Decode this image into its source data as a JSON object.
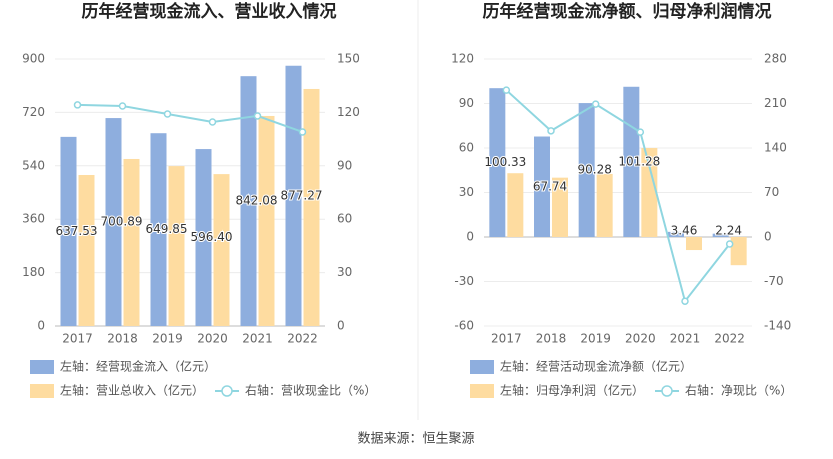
{
  "chart_data": [
    {
      "type": "bar",
      "title": "历年经营现金流入、营业收入情况",
      "categories": [
        "2017",
        "2018",
        "2019",
        "2020",
        "2021",
        "2022"
      ],
      "ylim": [
        0,
        900
      ],
      "yticks": [
        0,
        180,
        360,
        540,
        720,
        900
      ],
      "y2lim": [
        0,
        150
      ],
      "y2ticks": [
        0,
        30,
        60,
        90,
        120,
        150
      ],
      "grid": true,
      "series": [
        {
          "name": "左轴：经营现金流入（亿元）",
          "type": "bar",
          "color": "#8eaede",
          "values": [
            637.53,
            700.89,
            649.85,
            596.4,
            842.08,
            877.27
          ],
          "value_labels": [
            "637.53",
            "700.89",
            "649.85",
            "596.40",
            "842.08",
            "877.27"
          ]
        },
        {
          "name": "左轴：营业总收入（亿元）",
          "type": "bar",
          "color": "#fedca0",
          "values": [
            509,
            563,
            539,
            512,
            708,
            799
          ]
        },
        {
          "name": "右轴：营收现金比（%）",
          "type": "line",
          "axis": "y2",
          "color": "#8fd6e0",
          "values": [
            124.2,
            123.6,
            119.1,
            114.6,
            118,
            109
          ]
        }
      ]
    },
    {
      "type": "bar",
      "title": "历年经营现金流净额、归母净利润情况",
      "categories": [
        "2017",
        "2018",
        "2019",
        "2020",
        "2021",
        "2022"
      ],
      "ylim": [
        -60,
        120
      ],
      "yticks": [
        -60,
        -30,
        0,
        30,
        60,
        90,
        120
      ],
      "y2lim": [
        -140,
        280
      ],
      "y2ticks": [
        -140,
        -70,
        0,
        70,
        140,
        210,
        280
      ],
      "grid": true,
      "series": [
        {
          "name": "左轴：经营活动现金流净额（亿元）",
          "type": "bar",
          "color": "#8eaede",
          "values": [
            100.33,
            67.74,
            90.28,
            101.28,
            3.46,
            2.24
          ],
          "value_labels": [
            "100.33",
            "67.74",
            "90.28",
            "101.28",
            "3.46",
            "2.24"
          ]
        },
        {
          "name": "左轴：归母净利润（亿元）",
          "type": "bar",
          "color": "#fedca0",
          "values": [
            43,
            40,
            42.5,
            60,
            -8.8,
            -19
          ]
        },
        {
          "name": "右轴：净现比（%）",
          "type": "line",
          "axis": "y2",
          "color": "#8fd6e0",
          "values": [
            231,
            167,
            209,
            165,
            -101,
            -11
          ]
        }
      ]
    }
  ],
  "source": "数据来源：恒生聚源"
}
